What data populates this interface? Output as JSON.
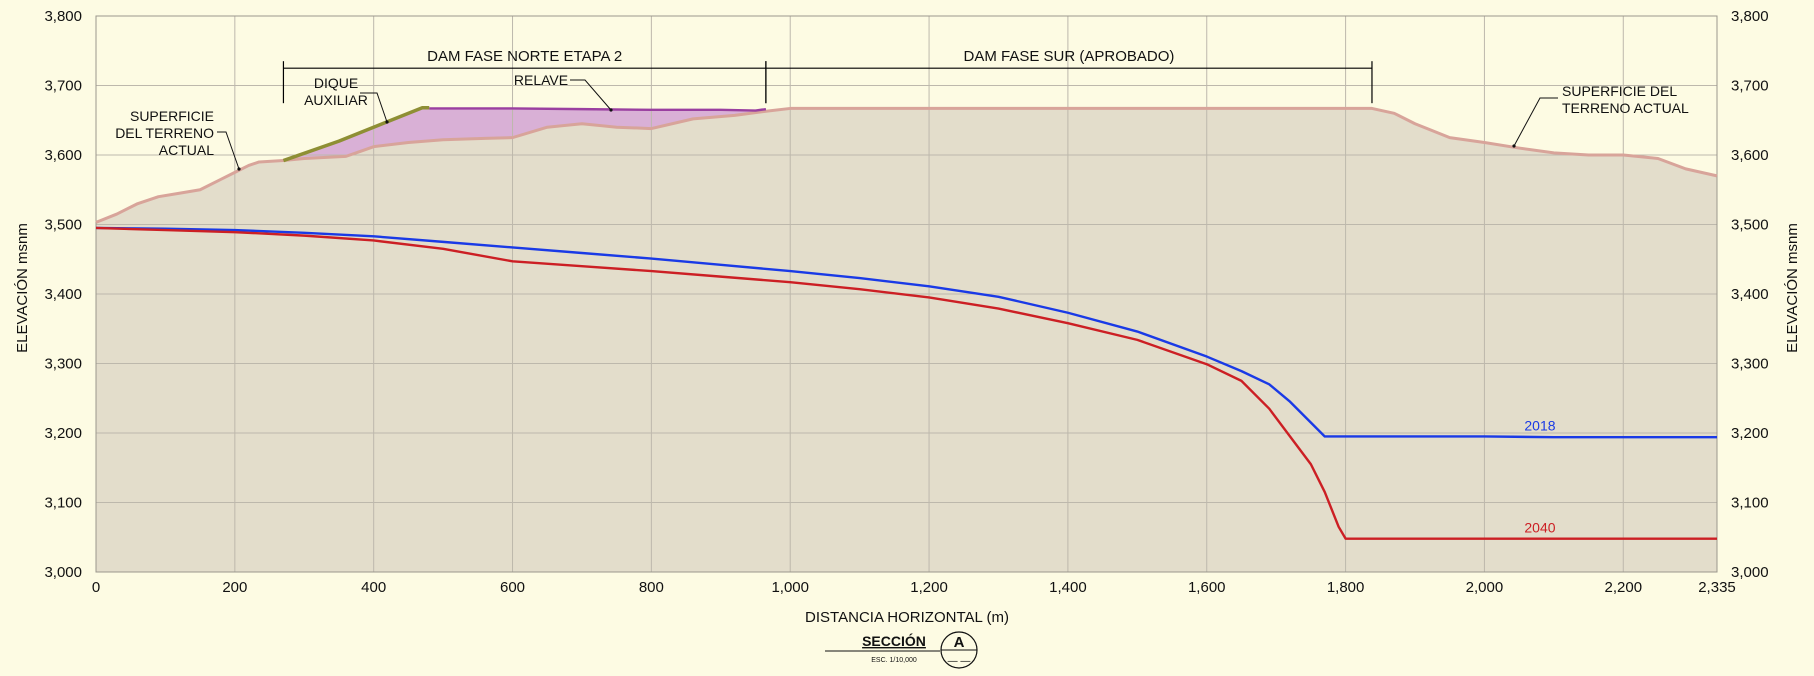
{
  "chart_data": {
    "type": "area",
    "title": "SECCIÓN",
    "scale_note": "ESC. 1/10,000",
    "section_marker": "A",
    "xlabel": "DISTANCIA HORIZONTAL (m)",
    "ylabel": "ELEVACIÓN msnm",
    "xlim": [
      0,
      2335
    ],
    "ylim": [
      3000,
      3800
    ],
    "x_ticks": [
      0,
      200,
      400,
      600,
      800,
      1000,
      1200,
      1400,
      1600,
      1800,
      2000,
      2200,
      2335
    ],
    "x_tick_labels": [
      "0",
      "200",
      "400",
      "600",
      "800",
      "1,000",
      "1,200",
      "1,400",
      "1,600",
      "1,800",
      "2,000",
      "2,200",
      "2,335"
    ],
    "y_ticks": [
      3000,
      3100,
      3200,
      3300,
      3400,
      3500,
      3600,
      3700,
      3800
    ],
    "y_tick_labels": [
      "3,000",
      "3,100",
      "3,200",
      "3,300",
      "3,400",
      "3,500",
      "3,600",
      "3,700",
      "3,800"
    ],
    "grid": true,
    "colors": {
      "background": "#fdfbe3",
      "plot_fill": "#e3ddcb",
      "terrain_line": "#d8a49a",
      "tailings_fill": "#d9b0d6",
      "tailings_line": "#9a3fa0",
      "dike_line": "#8e8f34",
      "grid": "#bdb8ac",
      "series_2018": "#1a3ae6",
      "series_2040": "#cc1f24",
      "dim_line": "#000000"
    },
    "series": [
      {
        "name": "2018",
        "color": "#1a3ae6",
        "x": [
          0,
          100,
          200,
          300,
          400,
          500,
          600,
          700,
          800,
          900,
          1000,
          1100,
          1200,
          1300,
          1400,
          1500,
          1600,
          1650,
          1690,
          1720,
          1770,
          1800,
          1900,
          2000,
          2100,
          2200,
          2335
        ],
        "y": [
          3495,
          3494,
          3492,
          3488,
          3483,
          3475,
          3467,
          3459,
          3451,
          3442,
          3433,
          3423,
          3411,
          3396,
          3373,
          3346,
          3310,
          3289,
          3270,
          3245,
          3195,
          3195,
          3195,
          3195,
          3194,
          3194,
          3194
        ]
      },
      {
        "name": "2040",
        "color": "#cc1f24",
        "x": [
          0,
          100,
          200,
          300,
          400,
          500,
          600,
          700,
          800,
          900,
          1000,
          1100,
          1200,
          1300,
          1400,
          1500,
          1600,
          1650,
          1690,
          1720,
          1750,
          1770,
          1790,
          1800,
          1900,
          2000,
          2100,
          2200,
          2335
        ],
        "y": [
          3495,
          3492,
          3489,
          3484,
          3477,
          3465,
          3447,
          3440,
          3433,
          3425,
          3417,
          3407,
          3395,
          3379,
          3358,
          3334,
          3299,
          3275,
          3235,
          3195,
          3155,
          3115,
          3065,
          3048,
          3048,
          3048,
          3048,
          3048,
          3048
        ]
      },
      {
        "name": "SUPERFICIE DEL TERRENO ACTUAL",
        "color": "#d8a49a",
        "x": [
          0,
          30,
          60,
          90,
          120,
          150,
          180,
          200,
          220,
          235,
          270,
          300,
          360,
          380,
          400,
          450,
          500,
          560,
          600,
          650,
          700,
          750,
          800,
          860,
          920,
          965,
          1000,
          1200,
          1400,
          1600,
          1700,
          1800,
          1838,
          1870,
          1900,
          1950,
          2000,
          2050,
          2100,
          2150,
          2200,
          2250,
          2290,
          2335
        ],
        "y": [
          3503,
          3515,
          3530,
          3540,
          3545,
          3550,
          3565,
          3575,
          3585,
          3590,
          3592,
          3595,
          3598,
          3605,
          3612,
          3618,
          3622,
          3624,
          3625,
          3640,
          3645,
          3640,
          3638,
          3652,
          3657,
          3663,
          3667,
          3667,
          3667,
          3667,
          3667,
          3667,
          3667,
          3660,
          3645,
          3625,
          3618,
          3610,
          3603,
          3600,
          3600,
          3595,
          3580,
          3570
        ]
      },
      {
        "name": "RELAVE",
        "color": "#9a3fa0",
        "x": [
          480,
          600,
          700,
          800,
          900,
          950,
          965
        ],
        "y": [
          3667,
          3667,
          3666,
          3665,
          3665,
          3664,
          3666
        ]
      },
      {
        "name": "DIQUE AUXILIAR",
        "color": "#8e8f34",
        "x": [
          270,
          350,
          420,
          470,
          480
        ],
        "y": [
          3592,
          3620,
          3648,
          3668,
          3668
        ]
      }
    ],
    "annotations": [
      {
        "text": "DAM FASE NORTE ETAPA 2",
        "type": "dimension",
        "x_start": 270,
        "x_end": 965,
        "y": 3735
      },
      {
        "text": "DAM FASE SUR (APROBADO)",
        "type": "dimension",
        "x_start": 965,
        "x_end": 1838,
        "y": 3735
      },
      {
        "text": "DIQUE AUXILIAR",
        "lines": [
          "DIQUE",
          "AUXILIAR"
        ],
        "target_x": 420,
        "target_y": 3648
      },
      {
        "text": "RELAVE",
        "lines": [
          "RELAVE"
        ],
        "target_x": 740,
        "target_y": 3666
      },
      {
        "text": "SUPERFICIE DEL TERRENO ACTUAL",
        "lines": [
          "SUPERFICIE",
          "DEL TERRENO",
          "ACTUAL"
        ],
        "target_x": 205,
        "target_y": 3578
      },
      {
        "text": "SUPERFICIE DEL TERRENO ACTUAL",
        "lines": [
          "SUPERFICIE  DEL",
          "TERRENO ACTUAL"
        ],
        "target_x": 2050,
        "target_y": 3610
      }
    ]
  }
}
